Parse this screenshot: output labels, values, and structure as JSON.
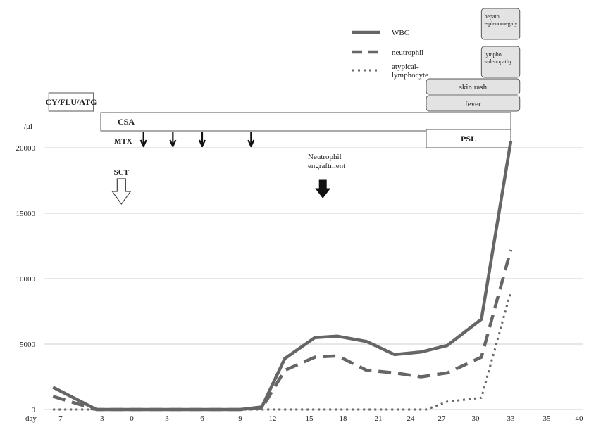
{
  "chart_data": {
    "type": "line",
    "x_axis_label": "day",
    "x": [
      -7,
      -3,
      0,
      3,
      6,
      9,
      12,
      15,
      18,
      21,
      24,
      27,
      30,
      33,
      35,
      40
    ],
    "xlim": [
      -7,
      40
    ],
    "y_unit": "/μl",
    "y_ticks": [
      0,
      5000,
      10000,
      15000,
      20000
    ],
    "ylim": [
      0,
      20000
    ],
    "grid": true,
    "legend_position": "top-right",
    "series": [
      {
        "name": "WBC",
        "style": "solid",
        "points": [
          [
            -7.6,
            1700
          ],
          [
            -3.4,
            0
          ],
          [
            0,
            0
          ],
          [
            3,
            0
          ],
          [
            6,
            0
          ],
          [
            9,
            0
          ],
          [
            11,
            200
          ],
          [
            13,
            3900
          ],
          [
            15.5,
            5500
          ],
          [
            17.5,
            5600
          ],
          [
            20,
            5200
          ],
          [
            22.5,
            4200
          ],
          [
            25,
            4400
          ],
          [
            27.5,
            4900
          ],
          [
            30.5,
            6900
          ],
          [
            33,
            20500
          ]
        ]
      },
      {
        "name": "neutrophil",
        "style": "dashed",
        "points": [
          [
            -7.6,
            1000
          ],
          [
            -3.4,
            0
          ],
          [
            0,
            0
          ],
          [
            3,
            0
          ],
          [
            6,
            0
          ],
          [
            9,
            0
          ],
          [
            11,
            100
          ],
          [
            13,
            3000
          ],
          [
            15.5,
            4000
          ],
          [
            17.5,
            4100
          ],
          [
            20,
            3000
          ],
          [
            22.5,
            2800
          ],
          [
            25,
            2500
          ],
          [
            27.5,
            2800
          ],
          [
            30.5,
            4000
          ],
          [
            33,
            12200
          ]
        ]
      },
      {
        "name": "atypical-\nlymphocyte",
        "legend_lines": [
          "atypical-",
          "lymphocyte"
        ],
        "style": "dotted",
        "points": [
          [
            -7.6,
            0
          ],
          [
            -3.4,
            0
          ],
          [
            0,
            0
          ],
          [
            3,
            0
          ],
          [
            6,
            0
          ],
          [
            9,
            0
          ],
          [
            12,
            0
          ],
          [
            15,
            0
          ],
          [
            18,
            0
          ],
          [
            21,
            0
          ],
          [
            24,
            0
          ],
          [
            25.5,
            0
          ],
          [
            27.5,
            600
          ],
          [
            30.5,
            900
          ],
          [
            33,
            9000
          ]
        ]
      }
    ],
    "regimens": [
      {
        "label": "CY/FLU/ATG",
        "start": -8,
        "end": -3.7
      },
      {
        "label": "CSA",
        "start": -3,
        "end": 33
      },
      {
        "label": "PSL",
        "start": 25.5,
        "end": 33
      }
    ],
    "mtx": {
      "label": "MTX",
      "days": [
        1,
        3.5,
        6,
        10
      ]
    },
    "sct": {
      "label": "SCT",
      "day": -1
    },
    "neutrophil_engraftment": {
      "label": "Neutrophil\nengraftment",
      "lines": [
        "Neutrophil",
        "engraftment"
      ],
      "day": 16.2
    },
    "symptoms": [
      {
        "label": "hepato\n-splenomegaly",
        "lines": [
          "hepato",
          "-splenomegaly"
        ],
        "start": 30.5,
        "end": 33.5
      },
      {
        "label": "lympho\n-adenopathy",
        "lines": [
          "lympho",
          "-adenopathy"
        ],
        "start": 30.5,
        "end": 33.5
      },
      {
        "label": "skin rash",
        "start": 25.5,
        "end": 33.5
      },
      {
        "label": "fever",
        "start": 25.5,
        "end": 33.5
      }
    ],
    "colors": {
      "line": "#666666",
      "grid": "#cfcfcf",
      "box_border": "#555555",
      "symptom_fill": "#e3e3e3",
      "arrow": "#111111"
    }
  }
}
